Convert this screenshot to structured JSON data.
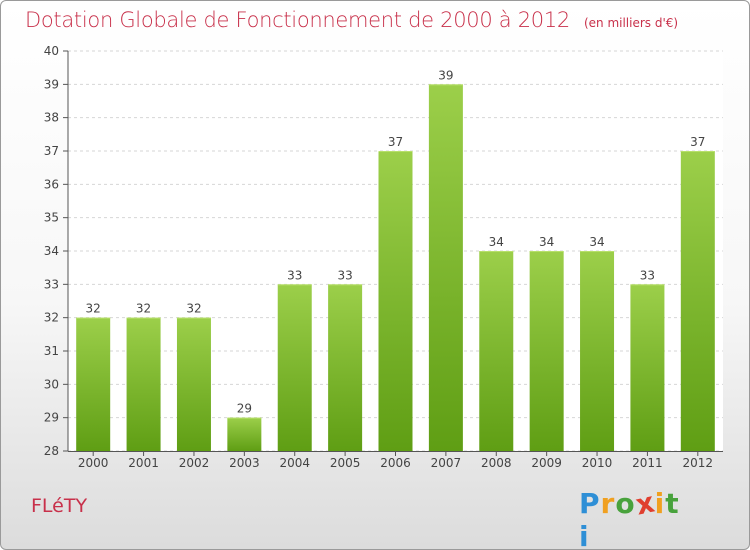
{
  "title": "Dotation Globale de Fonctionnement de 2000 à 2012",
  "unit": "(en milliers d'€)",
  "commune": "FLéTY",
  "logo": {
    "letters": [
      "P",
      "r",
      "o",
      "x",
      "i",
      "t",
      "i"
    ],
    "colors": [
      "#2e8fd6",
      "#f0a020",
      "#48a23c",
      "#e03f2f",
      "#f0a020",
      "#48a23c",
      "#2e8fd6"
    ]
  },
  "colors": {
    "bar_top": "#9ccf4a",
    "bar_bottom": "#5f9e14",
    "title": "#c8304a"
  },
  "chart_data": {
    "type": "bar",
    "categories": [
      "2000",
      "2001",
      "2002",
      "2003",
      "2004",
      "2005",
      "2006",
      "2007",
      "2008",
      "2009",
      "2010",
      "2011",
      "2012"
    ],
    "values": [
      32,
      32,
      32,
      29,
      33,
      33,
      37,
      39,
      34,
      34,
      34,
      33,
      37
    ],
    "data_labels": [
      "32",
      "32",
      "32",
      "29",
      "33",
      "33",
      "37",
      "39",
      "34",
      "34",
      "34",
      "33",
      "37"
    ],
    "yticks": [
      "28",
      "29",
      "30",
      "31",
      "32",
      "33",
      "34",
      "35",
      "36",
      "37",
      "38",
      "39",
      "40"
    ],
    "ylim": [
      28,
      40
    ],
    "grid": true
  }
}
